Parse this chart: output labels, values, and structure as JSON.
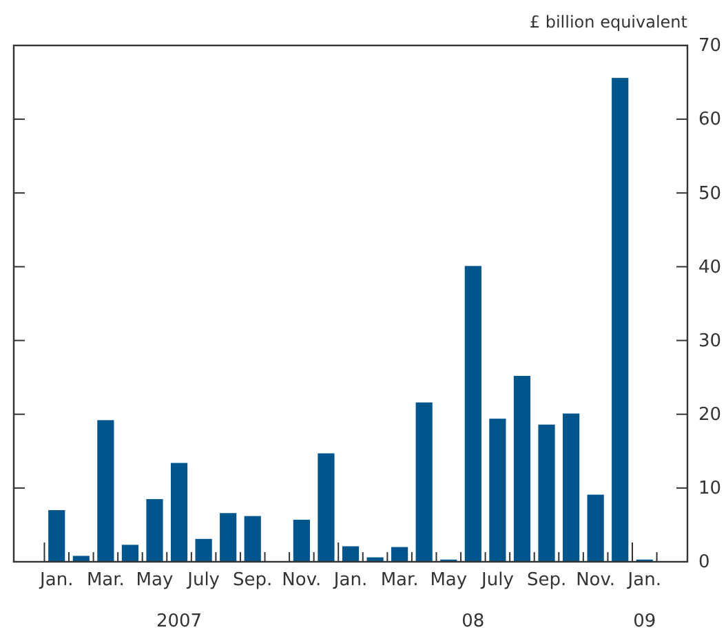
{
  "chart_data": {
    "type": "bar",
    "ylabel": "£ billion equivalent",
    "categories": [
      "Jan.",
      null,
      "Mar.",
      null,
      "May",
      null,
      "July",
      null,
      "Sep.",
      null,
      "Nov.",
      null,
      "Jan.",
      null,
      "Mar.",
      null,
      "May",
      null,
      "July",
      null,
      "Sep.",
      null,
      "Nov.",
      null,
      "Jan."
    ],
    "values": [
      7.0,
      0.8,
      19.2,
      2.3,
      8.5,
      13.4,
      3.1,
      6.6,
      6.2,
      0,
      5.7,
      14.7,
      2.1,
      0.6,
      2.0,
      21.6,
      0.3,
      40.1,
      19.4,
      25.2,
      18.6,
      20.1,
      9.1,
      65.6,
      0.3
    ],
    "color": "#00568c",
    "ylim": [
      0,
      70
    ],
    "yticks": [
      0,
      10,
      20,
      30,
      40,
      50,
      60,
      70
    ],
    "grid": false,
    "annotations": [
      "2007",
      "08",
      "09"
    ]
  }
}
